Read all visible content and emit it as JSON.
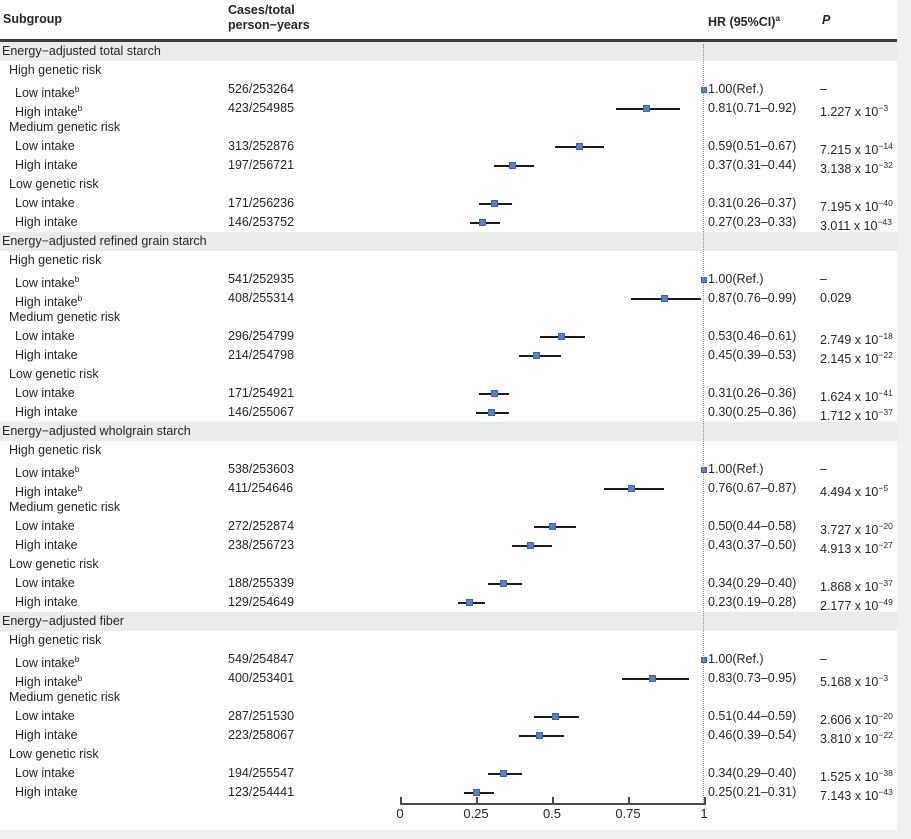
{
  "header": {
    "subgroup": "Subgroup",
    "cases_line1": "Cases/total",
    "cases_line2": "person−years",
    "hr": "HR (95%CI)",
    "hr_sup": "a",
    "p": "P"
  },
  "colors": {
    "marker_fill": "#5b7ec8",
    "marker_border": "#3f63ab",
    "ci_line": "#1c1c1c",
    "section_band": "#e9ecea",
    "reference_line": "#8f8f8f"
  },
  "chart_data": {
    "type": "scatter",
    "variant": "forest-plot",
    "axis": {
      "min": 0,
      "max": 1,
      "tick_values": [
        0,
        0.25,
        0.5,
        0.75,
        1
      ],
      "tick_labels": [
        "0",
        "0.25",
        "0.5",
        "0.75",
        "1"
      ],
      "reference_line": 1
    },
    "sections": [
      {
        "title": "Energy−adjusted total starch",
        "rows": [
          {
            "type": "group",
            "label": "High genetic risk"
          },
          {
            "type": "item",
            "label": "Low intake",
            "sup": "b",
            "cases": "526/253264",
            "ref": true,
            "hr_text": "1.00(Ref.)",
            "p_text": "–"
          },
          {
            "type": "item",
            "label": "High intake",
            "sup": "b",
            "cases": "423/254985",
            "hr": 0.81,
            "ci": [
              0.71,
              0.92
            ],
            "hr_text": "0.81(0.71–0.92)",
            "p_text": "1.227 x 10^−3"
          },
          {
            "type": "group",
            "label": "Medium genetic risk"
          },
          {
            "type": "item",
            "label": "Low intake",
            "cases": "313/252876",
            "hr": 0.59,
            "ci": [
              0.51,
              0.67
            ],
            "hr_text": "0.59(0.51–0.67)",
            "p_text": "7.215 x 10^−14"
          },
          {
            "type": "item",
            "label": "High intake",
            "cases": "197/256721",
            "hr": 0.37,
            "ci": [
              0.31,
              0.44
            ],
            "hr_text": "0.37(0.31–0.44)",
            "p_text": "3.138 x 10^−32"
          },
          {
            "type": "group",
            "label": "Low genetic risk"
          },
          {
            "type": "item",
            "label": "Low intake",
            "cases": "171/256236",
            "hr": 0.31,
            "ci": [
              0.26,
              0.37
            ],
            "hr_text": "0.31(0.26–0.37)",
            "p_text": "7.195 x 10^−40"
          },
          {
            "type": "item",
            "label": "High intake",
            "cases": "146/253752",
            "hr": 0.27,
            "ci": [
              0.23,
              0.33
            ],
            "hr_text": "0.27(0.23–0.33)",
            "p_text": "3.011 x 10^−43"
          }
        ]
      },
      {
        "title": "Energy−adjusted refined grain starch",
        "rows": [
          {
            "type": "group",
            "label": "High genetic risk"
          },
          {
            "type": "item",
            "label": "Low intake",
            "sup": "b",
            "cases": "541/252935",
            "ref": true,
            "hr_text": "1.00(Ref.)",
            "p_text": "–"
          },
          {
            "type": "item",
            "label": "High intake",
            "sup": "b",
            "cases": "408/255314",
            "hr": 0.87,
            "ci": [
              0.76,
              0.99
            ],
            "hr_text": "0.87(0.76–0.99)",
            "p_text": "0.029"
          },
          {
            "type": "group",
            "label": "Medium genetic risk"
          },
          {
            "type": "item",
            "label": "Low intake",
            "cases": "296/254799",
            "hr": 0.53,
            "ci": [
              0.46,
              0.61
            ],
            "hr_text": "0.53(0.46–0.61)",
            "p_text": "2.749 x 10^−18"
          },
          {
            "type": "item",
            "label": "High intake",
            "cases": "214/254798",
            "hr": 0.45,
            "ci": [
              0.39,
              0.53
            ],
            "hr_text": "0.45(0.39–0.53)",
            "p_text": "2.145 x 10^−22"
          },
          {
            "type": "group",
            "label": "Low genetic risk"
          },
          {
            "type": "item",
            "label": "Low intake",
            "cases": "171/254921",
            "hr": 0.31,
            "ci": [
              0.26,
              0.36
            ],
            "hr_text": "0.31(0.26–0.36)",
            "p_text": "1.624 x 10^−41"
          },
          {
            "type": "item",
            "label": "High intake",
            "cases": "146/255067",
            "hr": 0.3,
            "ci": [
              0.25,
              0.36
            ],
            "hr_text": "0.30(0.25–0.36)",
            "p_text": "1.712 x 10^−37"
          }
        ]
      },
      {
        "title": "Energy−adjusted wholgrain starch",
        "rows": [
          {
            "type": "group",
            "label": "High genetic risk"
          },
          {
            "type": "item",
            "label": "Low intake",
            "sup": "b",
            "cases": "538/253603",
            "ref": true,
            "hr_text": "1.00(Ref.)",
            "p_text": "–"
          },
          {
            "type": "item",
            "label": "High intake",
            "sup": "b",
            "cases": "411/254646",
            "hr": 0.76,
            "ci": [
              0.67,
              0.87
            ],
            "hr_text": "0.76(0.67–0.87)",
            "p_text": "4.494 x 10^−5"
          },
          {
            "type": "group",
            "label": "Medium genetic risk"
          },
          {
            "type": "item",
            "label": "Low intake",
            "cases": "272/252874",
            "hr": 0.5,
            "ci": [
              0.44,
              0.58
            ],
            "hr_text": "0.50(0.44–0.58)",
            "p_text": "3.727 x 10^−20"
          },
          {
            "type": "item",
            "label": "High intake",
            "cases": "238/256723",
            "hr": 0.43,
            "ci": [
              0.37,
              0.5
            ],
            "hr_text": "0.43(0.37–0.50)",
            "p_text": "4.913 x 10^−27"
          },
          {
            "type": "group",
            "label": "Low genetic risk"
          },
          {
            "type": "item",
            "label": "Low intake",
            "cases": "188/255339",
            "hr": 0.34,
            "ci": [
              0.29,
              0.4
            ],
            "hr_text": "0.34(0.29–0.40)",
            "p_text": "1.868 x 10^−37"
          },
          {
            "type": "item",
            "label": "High intake",
            "cases": "129/254649",
            "hr": 0.23,
            "ci": [
              0.19,
              0.28
            ],
            "hr_text": "0.23(0.19–0.28)",
            "p_text": "2.177 x 10^−49"
          }
        ]
      },
      {
        "title": "Energy−adjusted fiber",
        "rows": [
          {
            "type": "group",
            "label": "High genetic risk"
          },
          {
            "type": "item",
            "label": "Low intake",
            "sup": "b",
            "cases": "549/254847",
            "ref": true,
            "hr_text": "1.00(Ref.)",
            "p_text": "–"
          },
          {
            "type": "item",
            "label": "High intake",
            "sup": "b",
            "cases": "400/253401",
            "hr": 0.83,
            "ci": [
              0.73,
              0.95
            ],
            "hr_text": "0.83(0.73–0.95)",
            "p_text": "5.168 x 10^−3"
          },
          {
            "type": "group",
            "label": "Medium genetic risk"
          },
          {
            "type": "item",
            "label": "Low intake",
            "cases": "287/251530",
            "hr": 0.51,
            "ci": [
              0.44,
              0.59
            ],
            "hr_text": "0.51(0.44–0.59)",
            "p_text": "2.606 x 10^−20"
          },
          {
            "type": "item",
            "label": "High intake",
            "cases": "223/258067",
            "hr": 0.46,
            "ci": [
              0.39,
              0.54
            ],
            "hr_text": "0.46(0.39–0.54)",
            "p_text": "3.810 x 10^−22"
          },
          {
            "type": "group",
            "label": "Low genetic risk"
          },
          {
            "type": "item",
            "label": "Low intake",
            "cases": "194/255547",
            "hr": 0.34,
            "ci": [
              0.29,
              0.4
            ],
            "hr_text": "0.34(0.29–0.40)",
            "p_text": "1.525 x 10^−38"
          },
          {
            "type": "item",
            "label": "High intake",
            "cases": "123/254441",
            "hr": 0.25,
            "ci": [
              0.21,
              0.31
            ],
            "hr_text": "0.25(0.21–0.31)",
            "p_text": "7.143 x 10^−43"
          }
        ]
      }
    ]
  }
}
